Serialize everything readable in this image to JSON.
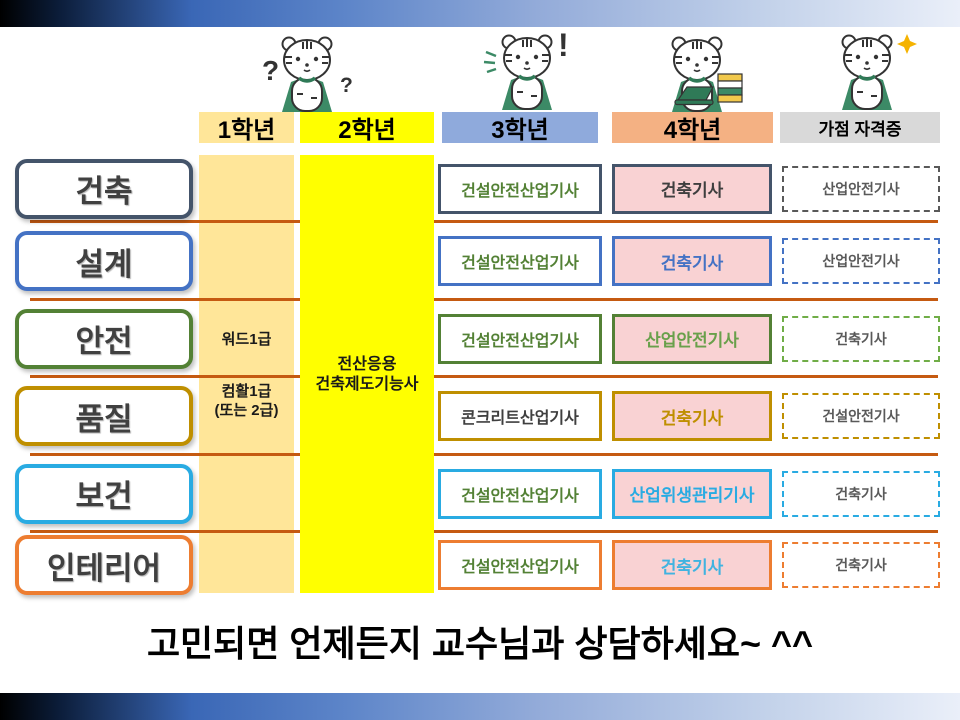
{
  "header": {
    "columns": [
      {
        "label": "1학년",
        "bg": "#FFE699"
      },
      {
        "label": "2학년",
        "bg": "#FFFF00"
      },
      {
        "label": "3학년",
        "bg": "#8FAADC"
      },
      {
        "label": "4학년",
        "bg": "#F4B183"
      },
      {
        "label": "가점 자격증",
        "bg": "#D9D9D9"
      }
    ]
  },
  "shared_columns": {
    "grade1": {
      "cert1": "워드1급",
      "cert2": "컴활1급",
      "cert2_alt": "(또는 2급)",
      "bg": "#FFE699"
    },
    "grade2": {
      "cert_line1": "전산응용",
      "cert_line2": "건축제도기능사",
      "bg": "#FFFF00"
    }
  },
  "rows": [
    {
      "track": "건축",
      "accent": "#44546A",
      "grade3": {
        "label": "건설안전산업기사",
        "color": "#538135",
        "border": "#44546A"
      },
      "grade4": {
        "label": "건축기사",
        "color": "#3F3F3F",
        "border": "#44546A",
        "bg": "#F9D2D3"
      },
      "bonus": {
        "label": "산업안전기사",
        "color": "#595959",
        "border": "#595959"
      }
    },
    {
      "track": "설계",
      "accent": "#4472C4",
      "grade3": {
        "label": "건설안전산업기사",
        "color": "#538135",
        "border": "#4472C4"
      },
      "grade4": {
        "label": "건축기사",
        "color": "#4472C4",
        "border": "#4472C4",
        "bg": "#F9D2D3"
      },
      "bonus": {
        "label": "산업안전기사",
        "color": "#595959",
        "border": "#4472C4"
      }
    },
    {
      "track": "안전",
      "accent": "#538135",
      "grade3": {
        "label": "건설안전산업기사",
        "color": "#538135",
        "border": "#538135"
      },
      "grade4": {
        "label": "산업안전기사",
        "color": "#69A04B",
        "border": "#538135",
        "bg": "#F9D2D3"
      },
      "bonus": {
        "label": "건축기사",
        "color": "#595959",
        "border": "#70AD47"
      }
    },
    {
      "track": "품질",
      "accent": "#BF8F00",
      "grade3": {
        "label": "콘크리트산업기사",
        "color": "#3F3F3F",
        "border": "#BF8F00"
      },
      "grade4": {
        "label": "건축기사",
        "color": "#BF8F00",
        "border": "#BF8F00",
        "bg": "#F9D2D3"
      },
      "bonus": {
        "label": "건설안전기사",
        "color": "#595959",
        "border": "#BF8F00"
      }
    },
    {
      "track": "보건",
      "accent": "#29ABE2",
      "grade3": {
        "label": "건설안전산업기사",
        "color": "#538135",
        "border": "#29ABE2"
      },
      "grade4": {
        "label": "산업위생관리기사",
        "color": "#29ABE2",
        "border": "#29ABE2",
        "bg": "#F9D2D3"
      },
      "bonus": {
        "label": "건축기사",
        "color": "#595959",
        "border": "#29ABE2"
      }
    },
    {
      "track": "인테리어",
      "accent": "#ED7D31",
      "grade3": {
        "label": "건설안전산업기사",
        "color": "#538135",
        "border": "#ED7D31"
      },
      "grade4": {
        "label": "건축기사",
        "color": "#41B3E0",
        "border": "#ED7D31",
        "bg": "#F9D2D3"
      },
      "bonus": {
        "label": "건축기사",
        "color": "#595959",
        "border": "#ED7D31"
      }
    }
  ],
  "mascots": [
    {
      "name": "thinking-tiger-with-question-marks"
    },
    {
      "name": "surprised-tiger-with-exclamation"
    },
    {
      "name": "studying-tiger-with-laptop-and-books"
    },
    {
      "name": "thumbs-up-tiger-with-sparkle"
    }
  ],
  "caption": "고민되면 언제든지 교수님과 상담하세요~ ^^",
  "divider_color": "#C55A11"
}
